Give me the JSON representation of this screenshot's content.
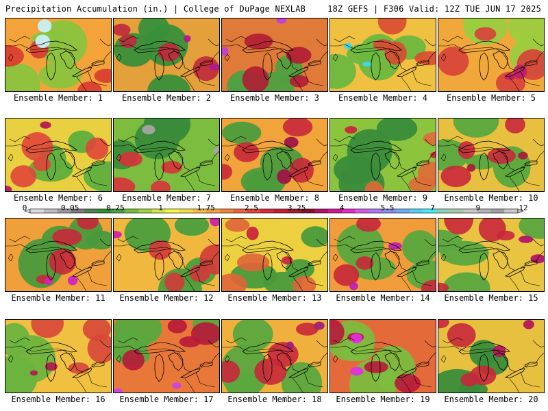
{
  "header": {
    "left": "Precipitation Accumulation (in.) | College of DuPage NEXLAB",
    "right": "18Z GEFS | F306 Valid: 12Z TUE JUN 17 2025"
  },
  "colorbar": {
    "tick_labels": [
      "0",
      "0.05",
      "0.25",
      "1",
      "1.75",
      "2.5",
      "3.25",
      "4",
      "5.5",
      "7",
      "9",
      "12"
    ],
    "colors": [
      "#dcdcdc",
      "#bdbdbd",
      "#9a9a9a",
      "#7b7b7b",
      "#4f7f4f",
      "#2f8f2f",
      "#46a546",
      "#70be3c",
      "#a2d23c",
      "#d2e646",
      "#f5f546",
      "#f5dc46",
      "#f5be46",
      "#f5a03c",
      "#f0823c",
      "#eb643c",
      "#e1463c",
      "#d7283c",
      "#c31e32",
      "#a51e32",
      "#870f28",
      "#b40f64",
      "#d21496",
      "#e628c8",
      "#d25ae6",
      "#aa78f0",
      "#8c8cf0",
      "#6eaaf5",
      "#50d2f5",
      "#3cf0f5",
      "#8cd2b4",
      "#aac8aa",
      "#c8c8c8",
      "#b4b4b4",
      "#a0a0a0",
      "#c8c8c8"
    ]
  },
  "members": [
    {
      "label": "Ensemble Member: 1",
      "base": "#f3a33a",
      "wet": "#d83a30",
      "dry": "#8ac43e",
      "extreme": "#c8f0f8"
    },
    {
      "label": "Ensemble Member: 2",
      "base": "#e4a03a",
      "wet": "#c0283c",
      "dry": "#3a8f3a",
      "extreme": "#b01890"
    },
    {
      "label": "Ensemble Member: 3",
      "base": "#e07a38",
      "wet": "#b01c34",
      "dry": "#4fa040",
      "extreme": "#c040d8"
    },
    {
      "label": "Ensemble Member: 4",
      "base": "#f0c040",
      "wet": "#d84a32",
      "dry": "#6cb840",
      "extreme": "#3ad8f0"
    },
    {
      "label": "Ensemble Member: 5",
      "base": "#f0a83a",
      "wet": "#d8403a",
      "dry": "#9ccc3e",
      "extreme": "#c01e6a"
    },
    {
      "label": "Ensemble Member: 6",
      "base": "#e8d040",
      "wet": "#e0463a",
      "dry": "#5fae3e",
      "extreme": "#b4185a"
    },
    {
      "label": "Ensemble Member: 7",
      "base": "#7cbc3e",
      "wet": "#d8323a",
      "dry": "#3a8c3a",
      "extreme": "#a5a5a5"
    },
    {
      "label": "Ensemble Member: 8",
      "base": "#f0a43a",
      "wet": "#c8283a",
      "dry": "#4c9c3c",
      "extreme": "#a01448"
    },
    {
      "label": "Ensemble Member: 9",
      "base": "#8cc43e",
      "wet": "#e06a3a",
      "dry": "#3a8c3a",
      "extreme": "#c8283a"
    },
    {
      "label": "Ensemble Member: 10",
      "base": "#e8c040",
      "wet": "#c8283a",
      "dry": "#58a83e",
      "extreme": "#a51e3c"
    },
    {
      "label": "Ensemble Member: 11",
      "base": "#f0a03a",
      "wet": "#c8283a",
      "dry": "#4a9a3c",
      "extreme": "#d024c0"
    },
    {
      "label": "Ensemble Member: 12",
      "base": "#f0b83e",
      "wet": "#d23a3a",
      "dry": "#4a9e3c",
      "extreme": "#d020a8"
    },
    {
      "label": "Ensemble Member: 13",
      "base": "#ecd040",
      "wet": "#e0643a",
      "dry": "#4a9a3c",
      "extreme": "#c8283a"
    },
    {
      "label": "Ensemble Member: 14",
      "base": "#f09c3a",
      "wet": "#c8283a",
      "dry": "#5aa83e",
      "extreme": "#c020b0"
    },
    {
      "label": "Ensemble Member: 15",
      "base": "#e8c440",
      "wet": "#c8283a",
      "dry": "#5aa83e",
      "extreme": "#b4146a"
    },
    {
      "label": "Ensemble Member: 16",
      "base": "#f0c040",
      "wet": "#d8463a",
      "dry": "#6cb43e",
      "extreme": "#b01c50"
    },
    {
      "label": "Ensemble Member: 17",
      "base": "#e8783a",
      "wet": "#b8183a",
      "dry": "#5aa83e",
      "extreme": "#c848e0"
    },
    {
      "label": "Ensemble Member: 18",
      "base": "#f0b03e",
      "wet": "#c8283a",
      "dry": "#5aa83e",
      "extreme": "#a0207c"
    },
    {
      "label": "Ensemble Member: 19",
      "base": "#e46a3a",
      "wet": "#b8183a",
      "dry": "#7cbc3e",
      "extreme": "#e030e0"
    },
    {
      "label": "Ensemble Member: 20",
      "base": "#e8c040",
      "wet": "#c8283a",
      "dry": "#3a8c3a",
      "extreme": "#b4185a"
    }
  ]
}
